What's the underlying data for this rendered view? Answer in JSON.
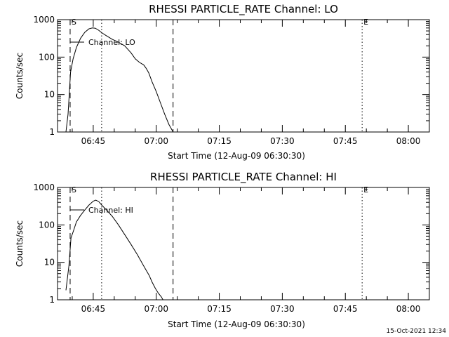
{
  "footer": {
    "timestamp": "15-Oct-2021 12:34"
  },
  "chart_data": [
    {
      "type": "line",
      "title": "RHESSI PARTICLE_RATE Channel: LO",
      "xlabel": "Start Time (12-Aug-09 06:30:30)",
      "ylabel": "Counts/sec",
      "ylog": true,
      "ylim": [
        1,
        1000
      ],
      "xlim_minutes": [
        6.5,
        95.0
      ],
      "x_ticks": [
        {
          "m": 15,
          "label": "06:45"
        },
        {
          "m": 30,
          "label": "07:00"
        },
        {
          "m": 45,
          "label": "07:15"
        },
        {
          "m": 60,
          "label": "07:30"
        },
        {
          "m": 75,
          "label": "07:45"
        },
        {
          "m": 90,
          "label": "08:00"
        }
      ],
      "y_ticks": [
        {
          "v": 1,
          "label": "1"
        },
        {
          "v": 10,
          "label": "10"
        },
        {
          "v": 100,
          "label": "100"
        },
        {
          "v": 1000,
          "label": "1000"
        }
      ],
      "legend": {
        "label": "Channel: LO",
        "placement": "top-left"
      },
      "vlines": [
        {
          "m": 9.5,
          "style": "dashed",
          "label": "S"
        },
        {
          "m": 17.0,
          "style": "dotted",
          "label": ""
        },
        {
          "m": 34.0,
          "style": "dashed",
          "label": ""
        },
        {
          "m": 79.0,
          "style": "dotted",
          "label": "E"
        },
        {
          "m": 95.0,
          "style": "dotted",
          "label": ""
        }
      ],
      "series": [
        {
          "x": [
            8.5,
            9.0,
            9.6,
            10.2,
            11.0,
            12.0,
            13.0,
            14.0,
            14.8,
            15.5,
            16.3,
            17.0,
            18.0,
            19.5,
            21.0,
            22.5,
            24.0,
            25.0,
            26.0,
            27.0,
            27.6,
            28.2,
            29.0,
            30.0,
            31.0,
            32.0,
            33.0,
            33.8,
            34.0
          ],
          "y": [
            1.0,
            3.0,
            40,
            90,
            180,
            320,
            460,
            570,
            600,
            590,
            520,
            450,
            380,
            300,
            250,
            200,
            130,
            90,
            72,
            62,
            50,
            38,
            22,
            12,
            6,
            3,
            1.6,
            1.1,
            1.0
          ]
        }
      ]
    },
    {
      "type": "line",
      "title": "RHESSI PARTICLE_RATE Channel: HI",
      "xlabel": "Start Time (12-Aug-09 06:30:30)",
      "ylabel": "Counts/sec",
      "ylog": true,
      "ylim": [
        1,
        1000
      ],
      "xlim_minutes": [
        6.5,
        95.0
      ],
      "x_ticks": [
        {
          "m": 15,
          "label": "06:45"
        },
        {
          "m": 30,
          "label": "07:00"
        },
        {
          "m": 45,
          "label": "07:15"
        },
        {
          "m": 60,
          "label": "07:30"
        },
        {
          "m": 75,
          "label": "07:45"
        },
        {
          "m": 90,
          "label": "08:00"
        }
      ],
      "y_ticks": [
        {
          "v": 1,
          "label": "1"
        },
        {
          "v": 10,
          "label": "10"
        },
        {
          "v": 100,
          "label": "100"
        },
        {
          "v": 1000,
          "label": "1000"
        }
      ],
      "legend": {
        "label": "Channel: HI",
        "placement": "top-left"
      },
      "vlines": [
        {
          "m": 9.5,
          "style": "dashed",
          "label": "S"
        },
        {
          "m": 17.0,
          "style": "dotted",
          "label": ""
        },
        {
          "m": 34.0,
          "style": "dashed",
          "label": ""
        },
        {
          "m": 79.0,
          "style": "dotted",
          "label": "E"
        },
        {
          "m": 95.0,
          "style": "dotted",
          "label": ""
        }
      ],
      "series": [
        {
          "x": [
            8.5,
            9.2,
            9.7,
            10.3,
            11.0,
            12.0,
            13.0,
            14.0,
            15.0,
            15.6,
            16.3,
            17.0,
            18.0,
            19.5,
            21.0,
            22.5,
            24.0,
            25.5,
            27.0,
            28.3,
            29.0,
            29.8,
            30.5,
            31.2,
            31.6
          ],
          "y": [
            1.8,
            8,
            45,
            70,
            120,
            180,
            250,
            340,
            430,
            460,
            420,
            340,
            260,
            170,
            100,
            55,
            30,
            16,
            8,
            4.5,
            3,
            2.0,
            1.5,
            1.2,
            1.0
          ]
        }
      ]
    }
  ]
}
